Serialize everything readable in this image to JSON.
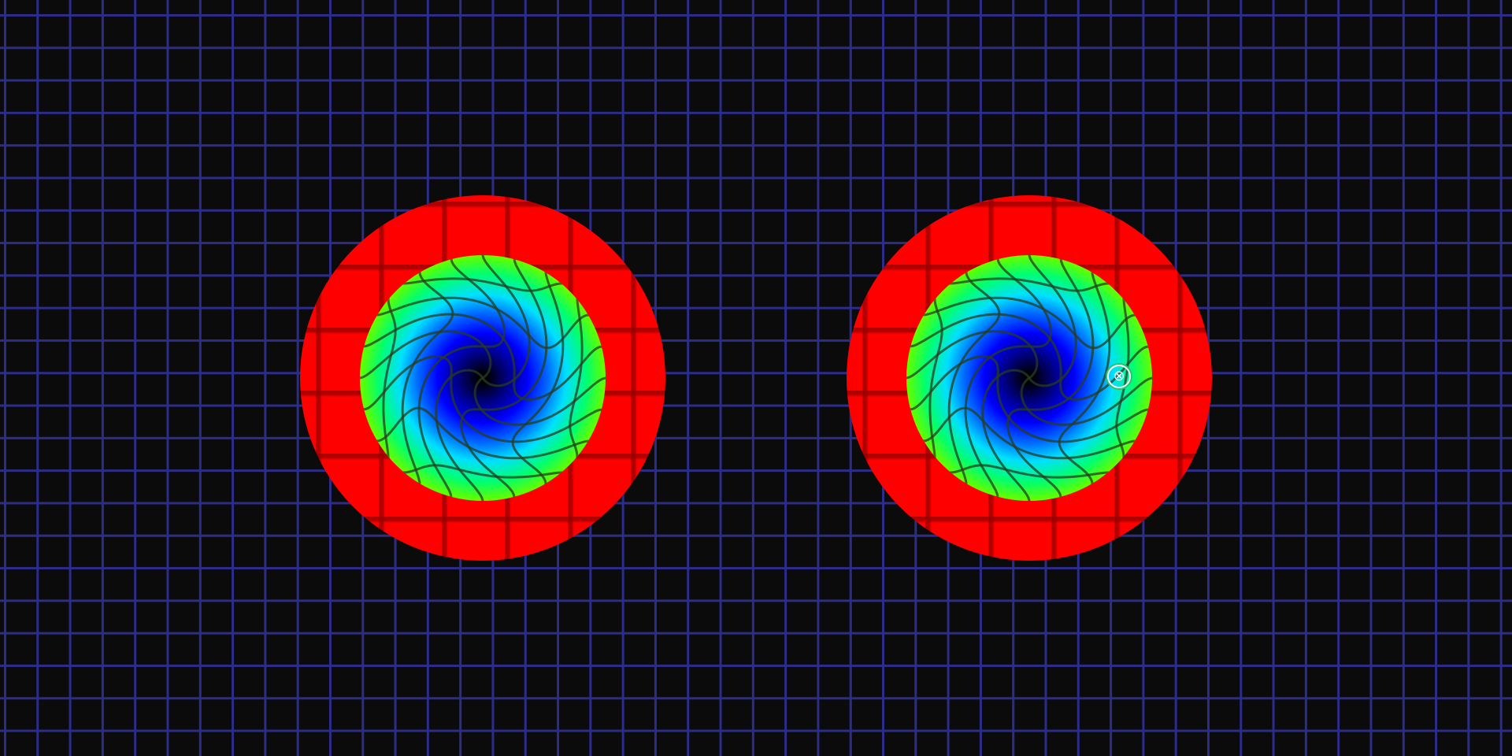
{
  "scene": {
    "background_color": "#0b0b0b",
    "grid_color": "#2c2c8a",
    "lens_color": "#ff0000",
    "swirl_colors": [
      "#000000",
      "#0000ff",
      "#00e0ff",
      "#00ff70",
      "#e8ff00",
      "#ff8a00"
    ]
  },
  "lenses": [
    {
      "name": "left-lens",
      "has_marker": false
    },
    {
      "name": "right-lens",
      "has_marker": true
    }
  ],
  "marker": {
    "icon": "close-icon",
    "glyph": "⊗",
    "ring_color": "#27c46a"
  }
}
